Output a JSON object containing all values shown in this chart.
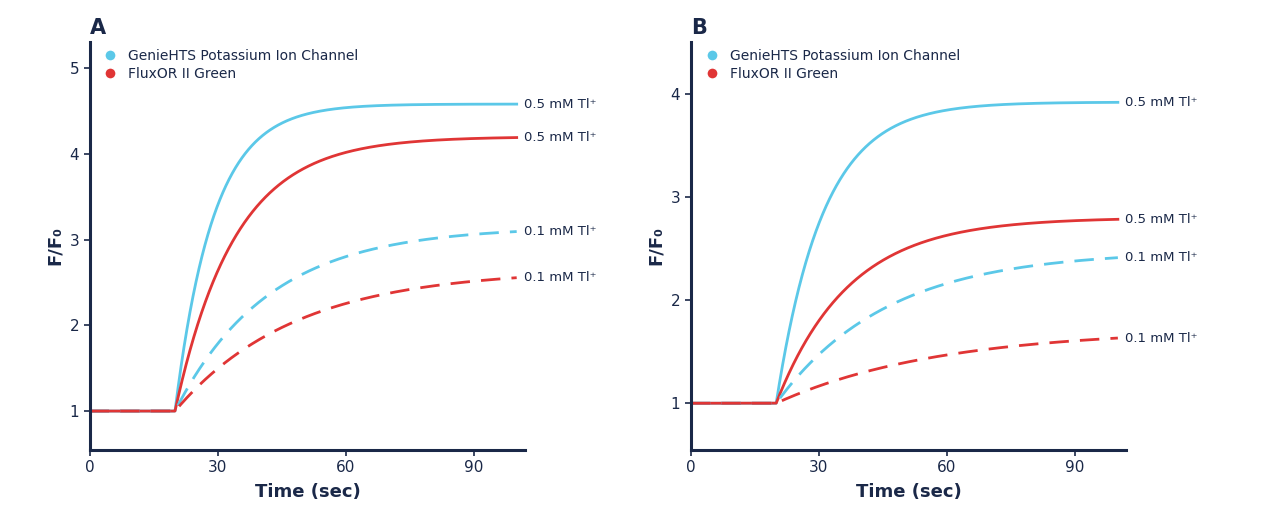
{
  "panel_A": {
    "title": "A",
    "xlim": [
      0,
      102
    ],
    "ylim": [
      0.55,
      5.3
    ],
    "yticks": [
      1,
      2,
      3,
      4,
      5
    ],
    "xticks": [
      0,
      30,
      60,
      90
    ],
    "ylabel": "F/F₀",
    "xlabel": "Time (sec)",
    "curves": [
      {
        "color": "#5bc8e8",
        "linestyle": "solid",
        "label": "0.5 mM Tl⁺",
        "peak": 4.58,
        "rise_start": 20,
        "rise_tau": 9
      },
      {
        "color": "#e03535",
        "linestyle": "solid",
        "label": "0.5 mM Tl⁺",
        "peak": 4.2,
        "rise_start": 20,
        "rise_tau": 14
      },
      {
        "color": "#5bc8e8",
        "linestyle": "dashed",
        "label": "0.1 mM Tl⁺",
        "peak": 3.15,
        "rise_start": 20,
        "rise_tau": 22
      },
      {
        "color": "#e03535",
        "linestyle": "dashed",
        "label": "0.1 mM Tl⁺",
        "peak": 2.65,
        "rise_start": 20,
        "rise_tau": 28
      }
    ],
    "legend": [
      {
        "color": "#5bc8e8",
        "label": "GenieHTS Potassium Ion Channel"
      },
      {
        "color": "#e03535",
        "label": "FluxOR II Green"
      }
    ]
  },
  "panel_B": {
    "title": "B",
    "xlim": [
      0,
      102
    ],
    "ylim": [
      0.55,
      4.5
    ],
    "yticks": [
      1,
      2,
      3,
      4
    ],
    "xticks": [
      0,
      30,
      60,
      90
    ],
    "ylabel": "F/F₀",
    "xlabel": "Time (sec)",
    "curves": [
      {
        "color": "#5bc8e8",
        "linestyle": "solid",
        "label": "0.5 mM Tl⁺",
        "peak": 3.92,
        "rise_start": 20,
        "rise_tau": 11
      },
      {
        "color": "#e03535",
        "linestyle": "solid",
        "label": "0.5 mM Tl⁺",
        "peak": 2.8,
        "rise_start": 20,
        "rise_tau": 17
      },
      {
        "color": "#5bc8e8",
        "linestyle": "dashed",
        "label": "0.1 mM Tl⁺",
        "peak": 2.48,
        "rise_start": 20,
        "rise_tau": 26
      },
      {
        "color": "#e03535",
        "linestyle": "dashed",
        "label": "0.1 mM Tl⁺",
        "peak": 1.72,
        "rise_start": 20,
        "rise_tau": 38
      }
    ],
    "legend": [
      {
        "color": "#5bc8e8",
        "label": "GenieHTS Potassium Ion Channel"
      },
      {
        "color": "#e03535",
        "label": "FluxOR II Green"
      }
    ]
  },
  "axis_color": "#1a2848",
  "bg_color": "#ffffff",
  "label_fontsize": 13,
  "tick_fontsize": 11,
  "title_fontsize": 15,
  "legend_fontsize": 10,
  "annot_fontsize": 9.5,
  "line_width": 2.0
}
